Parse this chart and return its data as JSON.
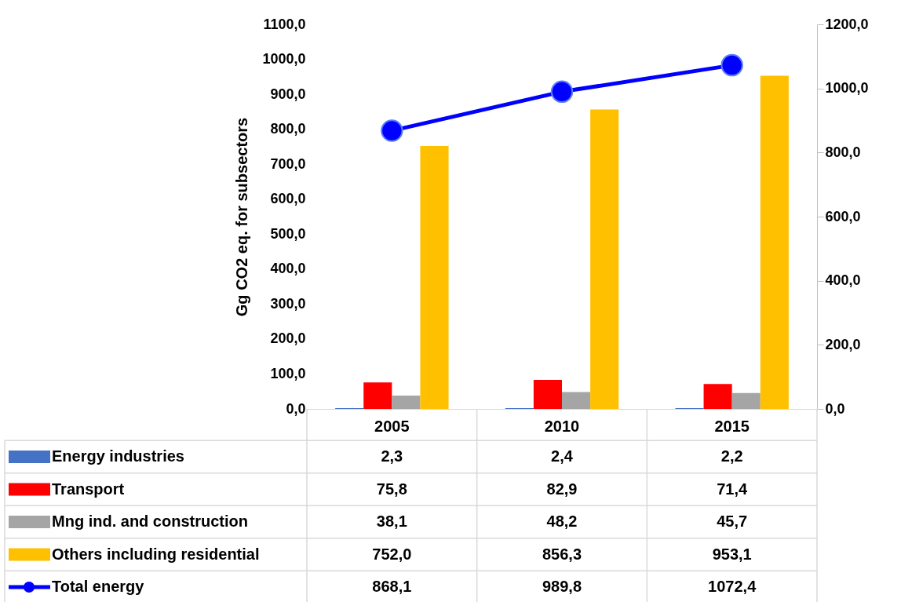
{
  "chart_data": {
    "type": "bar",
    "ylabel": "Gg CO2 eq. for subsectors",
    "categories": [
      "2005",
      "2010",
      "2015"
    ],
    "series": [
      {
        "name": "Energy industries",
        "color": "#4472c4",
        "values": [
          2.3,
          2.4,
          2.2
        ],
        "value_labels": [
          "2,3",
          "2,4",
          "2,2"
        ]
      },
      {
        "name": "Transport",
        "color": "#ff0000",
        "values": [
          75.8,
          82.9,
          71.4
        ],
        "value_labels": [
          "75,8",
          "82,9",
          "71,4"
        ]
      },
      {
        "name": "Mng ind. and construction",
        "color": "#a5a5a5",
        "values": [
          38.1,
          48.2,
          45.7
        ],
        "value_labels": [
          "38,1",
          "48,2",
          "45,7"
        ]
      },
      {
        "name": "Others including residential",
        "color": "#ffc000",
        "values": [
          752.0,
          856.3,
          953.1
        ],
        "value_labels": [
          "752,0",
          "856,3",
          "953,1"
        ]
      },
      {
        "name": "Total energy",
        "color": "#0000ff",
        "type": "line",
        "axis": "y2",
        "values": [
          868.1,
          989.8,
          1072.4
        ],
        "value_labels": [
          "868,1",
          "989,8",
          "1072,4"
        ]
      }
    ],
    "ylim": [
      0,
      1100
    ],
    "yticks": [
      {
        "value": 0,
        "label": "0,0"
      },
      {
        "value": 100,
        "label": "100,0"
      },
      {
        "value": 200,
        "label": "200,0"
      },
      {
        "value": 300,
        "label": "300,0"
      },
      {
        "value": 400,
        "label": "400,0"
      },
      {
        "value": 500,
        "label": "500,0"
      },
      {
        "value": 600,
        "label": "600,0"
      },
      {
        "value": 700,
        "label": "700,0"
      },
      {
        "value": 800,
        "label": "800,0"
      },
      {
        "value": 900,
        "label": "900,0"
      },
      {
        "value": 1000,
        "label": "1000,0"
      },
      {
        "value": 1100,
        "label": "1100,0"
      }
    ],
    "y2lim": [
      0,
      1200
    ],
    "y2ticks": [
      {
        "value": 0,
        "label": "0,0"
      },
      {
        "value": 200,
        "label": "200,0"
      },
      {
        "value": 400,
        "label": "400,0"
      },
      {
        "value": 600,
        "label": "600,0"
      },
      {
        "value": 800,
        "label": "800,0"
      },
      {
        "value": 1000,
        "label": "1000,0"
      },
      {
        "value": 1200,
        "label": "1200,0"
      }
    ],
    "marker": "circle",
    "legend": "bottom left",
    "grid": false
  }
}
